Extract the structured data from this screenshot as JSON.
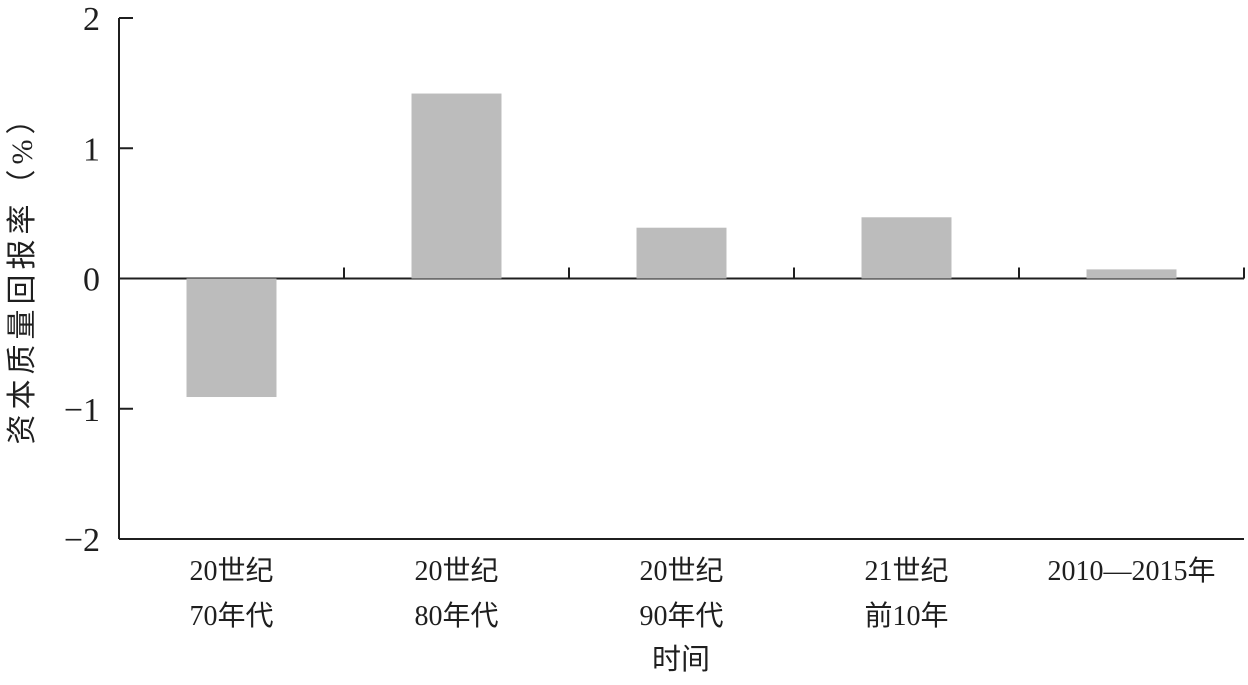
{
  "chart_data": {
    "type": "bar",
    "title": "",
    "xlabel": "时间",
    "ylabel": "资本质量回报率（%）",
    "categories": [
      "20世纪70年代",
      "20世纪80年代",
      "20世纪90年代",
      "21世纪前10年",
      "2010—2015年"
    ],
    "category_lines": [
      [
        "20世纪",
        "70年代"
      ],
      [
        "20世纪",
        "80年代"
      ],
      [
        "20世纪",
        "90年代"
      ],
      [
        "21世纪",
        "前10年"
      ],
      [
        "2010—2015年"
      ]
    ],
    "values": [
      -0.91,
      1.42,
      0.39,
      0.47,
      0.07
    ],
    "ylim": [
      -2,
      2
    ],
    "yticks": [
      {
        "value": 2,
        "label": "2"
      },
      {
        "value": 1,
        "label": "1"
      },
      {
        "value": 0,
        "label": "0"
      },
      {
        "value": -1,
        "label": "−1"
      },
      {
        "value": -2,
        "label": "−2"
      }
    ],
    "legend": "none",
    "grid": "off",
    "bar_color": "#bcbcbc",
    "axis_color": "#1f1f1f",
    "text_color": "#1f1f1f"
  }
}
